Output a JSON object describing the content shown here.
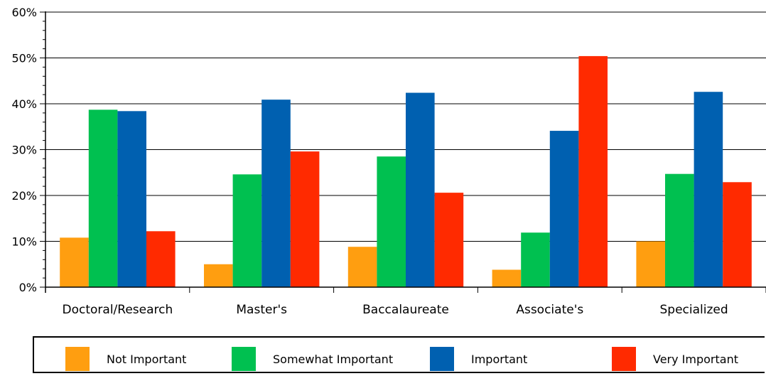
{
  "chart_data": {
    "type": "bar",
    "categories": [
      "Doctoral/Research",
      "Master's",
      "Baccalaureate",
      "Associate's",
      "Specialized"
    ],
    "series": [
      {
        "name": "Not Important",
        "color": "#ff9e10",
        "values": [
          10.8,
          5.0,
          8.8,
          3.8,
          10.0
        ]
      },
      {
        "name": "Somewhat Important",
        "color": "#00c050",
        "values": [
          38.7,
          24.6,
          28.5,
          11.9,
          24.7
        ]
      },
      {
        "name": "Important",
        "color": "#0060b0",
        "values": [
          38.4,
          40.9,
          42.4,
          34.1,
          42.6
        ]
      },
      {
        "name": "Very Important",
        "color": "#ff2a00",
        "values": [
          12.2,
          29.6,
          20.6,
          50.4,
          22.9
        ]
      }
    ],
    "y_ticks": [
      "0%",
      "10%",
      "20%",
      "30%",
      "40%",
      "50%",
      "60%"
    ],
    "ylim": [
      0,
      60
    ],
    "grid": true,
    "legend_position": "bottom"
  }
}
